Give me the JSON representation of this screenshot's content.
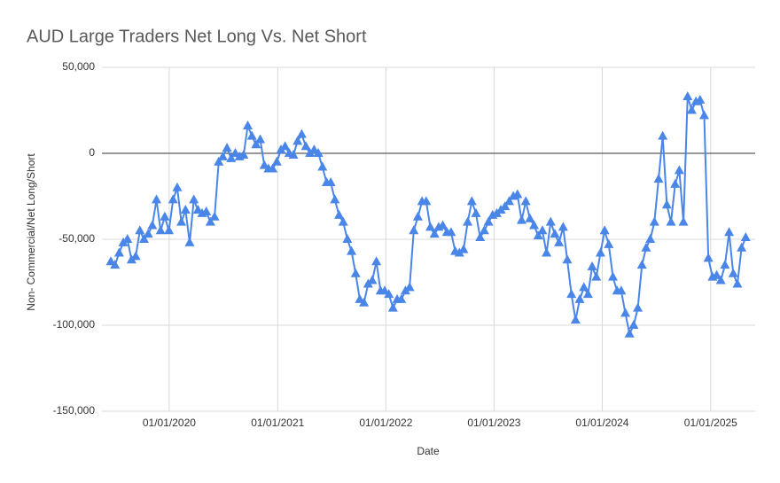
{
  "chart_data": {
    "type": "line",
    "title": "AUD Large Traders Net Long Vs. Net Short",
    "x_label": "Date",
    "y_label": "Non- Commercial/Net Long/Short",
    "xlim": [
      "2019-05-19",
      "2025-05-31"
    ],
    "xticks": [
      {
        "value": "2020-01-01",
        "label": "01/01/2020"
      },
      {
        "value": "2021-01-01",
        "label": "01/01/2021"
      },
      {
        "value": "2022-01-01",
        "label": "01/01/2022"
      },
      {
        "value": "2023-01-01",
        "label": "01/01/2023"
      },
      {
        "value": "2024-01-01",
        "label": "01/01/2024"
      },
      {
        "value": "2025-01-01",
        "label": "01/01/2025"
      }
    ],
    "ylim": [
      -150000,
      50000
    ],
    "yticks": [
      {
        "value": -150000,
        "label": "-150,000"
      },
      {
        "value": -100000,
        "label": "-100,000"
      },
      {
        "value": -50000,
        "label": "-50,000"
      },
      0,
      {
        "value": 50000,
        "label": "50,000"
      }
    ],
    "grid": true,
    "marker": "triangle",
    "x": [
      "2019-06-18",
      "2019-07-02",
      "2019-07-16",
      "2019-07-30",
      "2019-08-13",
      "2019-08-27",
      "2019-09-10",
      "2019-09-24",
      "2019-10-08",
      "2019-10-22",
      "2019-11-05",
      "2019-11-19",
      "2019-12-03",
      "2019-12-17",
      "2019-12-31",
      "2020-01-14",
      "2020-01-28",
      "2020-02-11",
      "2020-02-25",
      "2020-03-10",
      "2020-03-24",
      "2020-04-07",
      "2020-04-21",
      "2020-05-05",
      "2020-05-19",
      "2020-06-02",
      "2020-06-16",
      "2020-06-30",
      "2020-07-14",
      "2020-07-28",
      "2020-08-11",
      "2020-08-25",
      "2020-09-08",
      "2020-09-22",
      "2020-10-06",
      "2020-10-20",
      "2020-11-03",
      "2020-11-17",
      "2020-12-01",
      "2020-12-15",
      "2020-12-29",
      "2021-01-12",
      "2021-01-26",
      "2021-02-09",
      "2021-02-23",
      "2021-03-09",
      "2021-03-23",
      "2021-04-06",
      "2021-04-20",
      "2021-05-04",
      "2021-05-18",
      "2021-06-01",
      "2021-06-15",
      "2021-06-29",
      "2021-07-13",
      "2021-07-27",
      "2021-08-10",
      "2021-08-24",
      "2021-09-07",
      "2021-09-21",
      "2021-10-05",
      "2021-10-19",
      "2021-11-02",
      "2021-11-16",
      "2021-11-30",
      "2021-12-14",
      "2021-12-28",
      "2022-01-11",
      "2022-01-25",
      "2022-02-08",
      "2022-02-22",
      "2022-03-08",
      "2022-03-22",
      "2022-04-05",
      "2022-04-19",
      "2022-05-03",
      "2022-05-17",
      "2022-05-31",
      "2022-06-14",
      "2022-06-28",
      "2022-07-12",
      "2022-07-26",
      "2022-08-09",
      "2022-08-23",
      "2022-09-06",
      "2022-09-20",
      "2022-10-04",
      "2022-10-18",
      "2022-11-01",
      "2022-11-15",
      "2022-11-29",
      "2022-12-13",
      "2022-12-27",
      "2023-01-10",
      "2023-01-24",
      "2023-02-07",
      "2023-02-21",
      "2023-03-07",
      "2023-03-21",
      "2023-04-04",
      "2023-04-18",
      "2023-05-02",
      "2023-05-16",
      "2023-05-30",
      "2023-06-13",
      "2023-06-27",
      "2023-07-11",
      "2023-07-25",
      "2023-08-08",
      "2023-08-22",
      "2023-09-05",
      "2023-09-19",
      "2023-10-03",
      "2023-10-17",
      "2023-10-31",
      "2023-11-14",
      "2023-11-28",
      "2023-12-12",
      "2023-12-26",
      "2024-01-09",
      "2024-01-23",
      "2024-02-06",
      "2024-02-20",
      "2024-03-05",
      "2024-03-19",
      "2024-04-02",
      "2024-04-16",
      "2024-04-30",
      "2024-05-14",
      "2024-05-28",
      "2024-06-11",
      "2024-06-25",
      "2024-07-09",
      "2024-07-23",
      "2024-08-06",
      "2024-08-20",
      "2024-09-03",
      "2024-09-17",
      "2024-10-01",
      "2024-10-15",
      "2024-10-29",
      "2024-11-12",
      "2024-11-26",
      "2024-12-10",
      "2024-12-24",
      "2025-01-07",
      "2025-01-21",
      "2025-02-04",
      "2025-02-18",
      "2025-03-04",
      "2025-03-18",
      "2025-04-01",
      "2025-04-15",
      "2025-04-29"
    ],
    "series": [
      {
        "color": "#4a86e8",
        "values": [
          -63000,
          -65000,
          -58000,
          -52000,
          -50000,
          -62000,
          -60000,
          -45000,
          -50000,
          -47000,
          -42000,
          -27000,
          -45000,
          -37000,
          -45000,
          -27000,
          -20000,
          -40000,
          -33000,
          -52000,
          -27000,
          -33000,
          -35000,
          -34000,
          -40000,
          -37000,
          -5000,
          -2000,
          3000,
          -3000,
          0,
          -2000,
          -1000,
          16000,
          10000,
          5000,
          8000,
          -7000,
          -9000,
          -9000,
          -5000,
          2000,
          4000,
          0,
          -1000,
          7000,
          11000,
          4000,
          0,
          2000,
          0,
          -8000,
          -17000,
          -17000,
          -27000,
          -36000,
          -40000,
          -50000,
          -57000,
          -70000,
          -85000,
          -87000,
          -76000,
          -74000,
          -63000,
          -80000,
          -80000,
          -82000,
          -90000,
          -85000,
          -85000,
          -80000,
          -78000,
          -45000,
          -37000,
          -28000,
          -28000,
          -43000,
          -47000,
          -43000,
          -42000,
          -46000,
          -46000,
          -57000,
          -58000,
          -56000,
          -40000,
          -28000,
          -35000,
          -49000,
          -45000,
          -40000,
          -36000,
          -35000,
          -33000,
          -31000,
          -28000,
          -25000,
          -24000,
          -39000,
          -28000,
          -38000,
          -42000,
          -48000,
          -45000,
          -58000,
          -40000,
          -47000,
          -52000,
          -43000,
          -62000,
          -82000,
          -97000,
          -85000,
          -78000,
          -82000,
          -66000,
          -72000,
          -58000,
          -45000,
          -53000,
          -72000,
          -80000,
          -80000,
          -93000,
          -105000,
          -100000,
          -90000,
          -65000,
          -55000,
          -50000,
          -40000,
          -15000,
          10000,
          -30000,
          -40000,
          -18000,
          -10000,
          -40000,
          33000,
          25000,
          30000,
          31000,
          22000,
          -61000,
          -72000,
          -71000,
          -74000,
          -65000,
          -46000,
          -70000,
          -76000,
          -55000,
          -49000
        ]
      }
    ]
  }
}
